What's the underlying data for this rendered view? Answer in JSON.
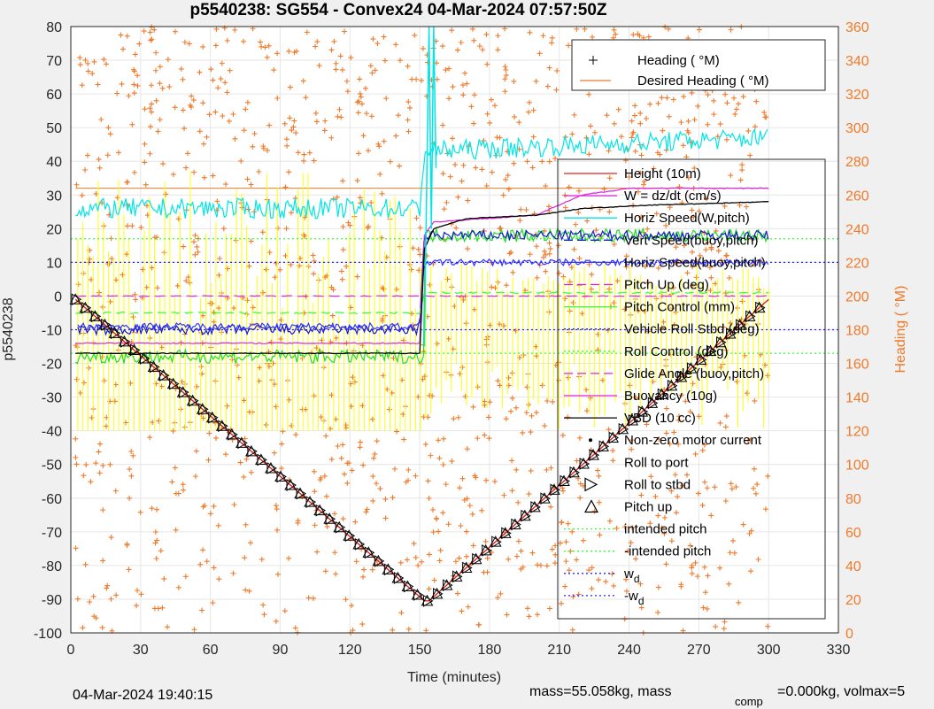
{
  "chart_data": {
    "type": "line",
    "title": "p5540238: SG554 - Convex24 04-Mar-2024 07:57:50Z",
    "xlabel": "Time (minutes)",
    "ylabel": "p5540238",
    "y2label": "Heading (  °M)",
    "xlim": [
      0,
      330
    ],
    "ylim": [
      -100,
      80
    ],
    "y2lim": [
      0,
      360
    ],
    "x_ticks": [
      0,
      30,
      60,
      90,
      120,
      150,
      180,
      210,
      240,
      270,
      300,
      330
    ],
    "y_ticks": [
      -100,
      -90,
      -80,
      -70,
      -60,
      -50,
      -40,
      -30,
      -20,
      -10,
      0,
      10,
      20,
      30,
      40,
      50,
      60,
      70,
      80
    ],
    "y2_ticks": [
      0,
      20,
      40,
      60,
      80,
      100,
      120,
      140,
      160,
      180,
      200,
      220,
      240,
      260,
      280,
      300,
      320,
      340,
      360
    ],
    "grid": true,
    "heading_legend": {
      "placement": "top-right",
      "items": [
        "Heading (  °M)",
        "Desired Heading (    °M)"
      ]
    },
    "main_legend": {
      "placement": "right",
      "items": [
        "Height (10m)",
        "W = dz/dt (cm/s)",
        "Horiz Speed(W,pitch)",
        "Vert Speed(buoy,pitch)",
        "Horiz Speed(buoy,pitch)",
        "Pitch Up (deg)",
        "Pitch Control (mm)",
        "Vehicle Roll Stbd (deg)",
        "Roll Control (deg)",
        "Glide Angle (buoy,pitch)",
        "Buoyancy (10g)",
        "VBD (10 cc)",
        "Non-zero motor current",
        "Roll to port",
        "Roll to stbd",
        "Pitch up",
        "intended pitch",
        "-intended pitch",
        "w_d",
        "-w_d"
      ]
    },
    "series": [
      {
        "name": "Height (10m)",
        "x": [
          2,
          152,
          154,
          300
        ],
        "y": [
          -1,
          -90.5,
          -90.5,
          -1
        ]
      },
      {
        "name": "VBD (10 cc)",
        "x": [
          2,
          150,
          152,
          156,
          170,
          200,
          220,
          250,
          300
        ],
        "y": [
          -17,
          -17,
          14,
          20,
          23,
          24,
          26,
          27,
          28
        ]
      },
      {
        "name": "Buoyancy (10g)",
        "x": [
          2,
          150,
          152,
          156,
          200,
          220,
          240,
          300
        ],
        "y": [
          -14,
          -14,
          18,
          22,
          24,
          30,
          32,
          32
        ]
      },
      {
        "name": "Glide Angle (buoy,pitch)",
        "x": [
          2,
          150,
          152,
          300
        ],
        "y": [
          -16,
          -16,
          16,
          16
        ]
      },
      {
        "name": "Horiz Speed(W,pitch)",
        "x": [
          2,
          150,
          152,
          300
        ],
        "y": [
          26,
          26,
          43,
          47
        ]
      },
      {
        "name": "Pitch Up (deg)",
        "x": [
          2,
          150,
          152,
          300
        ],
        "y": [
          0,
          0,
          0,
          0
        ]
      },
      {
        "name": "Pitch Control (mm)",
        "x": [
          2,
          150,
          152,
          300
        ],
        "y": [
          -5,
          -5,
          1,
          1
        ]
      },
      {
        "name": "Vert Speed(buoy,pitch)",
        "x": [
          2,
          150,
          152,
          300
        ],
        "y": [
          -10,
          -10,
          18,
          18
        ]
      },
      {
        "name": "Horiz Speed(buoy,pitch)",
        "x": [
          2,
          150,
          152,
          300
        ],
        "y": [
          -9,
          -9,
          10,
          10
        ]
      },
      {
        "name": "intended pitch",
        "x": [
          0,
          330
        ],
        "y": [
          17,
          17
        ]
      },
      {
        "name": "-intended pitch",
        "x": [
          0,
          330
        ],
        "y": [
          -17,
          -17
        ]
      },
      {
        "name": "w_d",
        "x": [
          0,
          330
        ],
        "y": [
          10,
          10
        ]
      },
      {
        "name": "-w_d",
        "x": [
          0,
          330
        ],
        "y": [
          -10,
          -10
        ]
      }
    ]
  },
  "footer": {
    "left": "04-Mar-2024 19:40:15",
    "right_a": "mass=55.058kg, mass",
    "right_sub": "comp",
    "right_b": "=0.000kg, volmax=5"
  }
}
